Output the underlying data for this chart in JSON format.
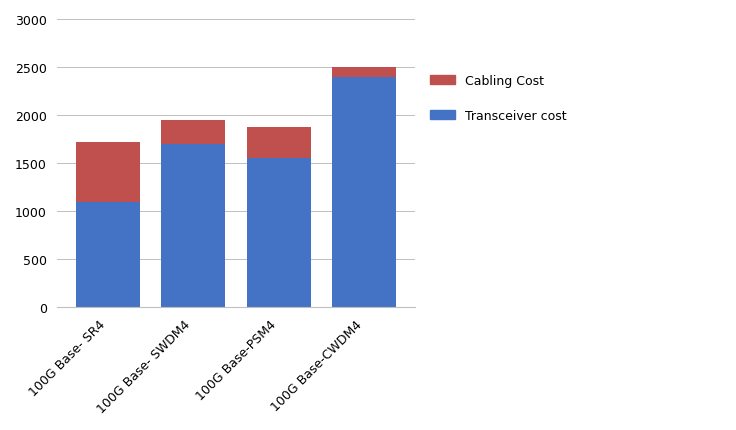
{
  "categories": [
    "100G Base- SR4",
    "100G Base- SWDM4",
    "100G Base-PSM4",
    "100G Base-CWDM4"
  ],
  "transceiver_costs": [
    1100,
    1700,
    1550,
    2400
  ],
  "cabling_costs": [
    620,
    250,
    330,
    100
  ],
  "transceiver_color": "#4472C4",
  "cabling_color": "#C0504D",
  "ylim": [
    0,
    3000
  ],
  "yticks": [
    0,
    500,
    1000,
    1500,
    2000,
    2500,
    3000
  ],
  "legend_cabling": "Cabling Cost",
  "legend_transceiver": "Transceiver cost",
  "background_color": "#FFFFFF",
  "bar_width": 0.75,
  "grid_color": "#BFBFBF"
}
